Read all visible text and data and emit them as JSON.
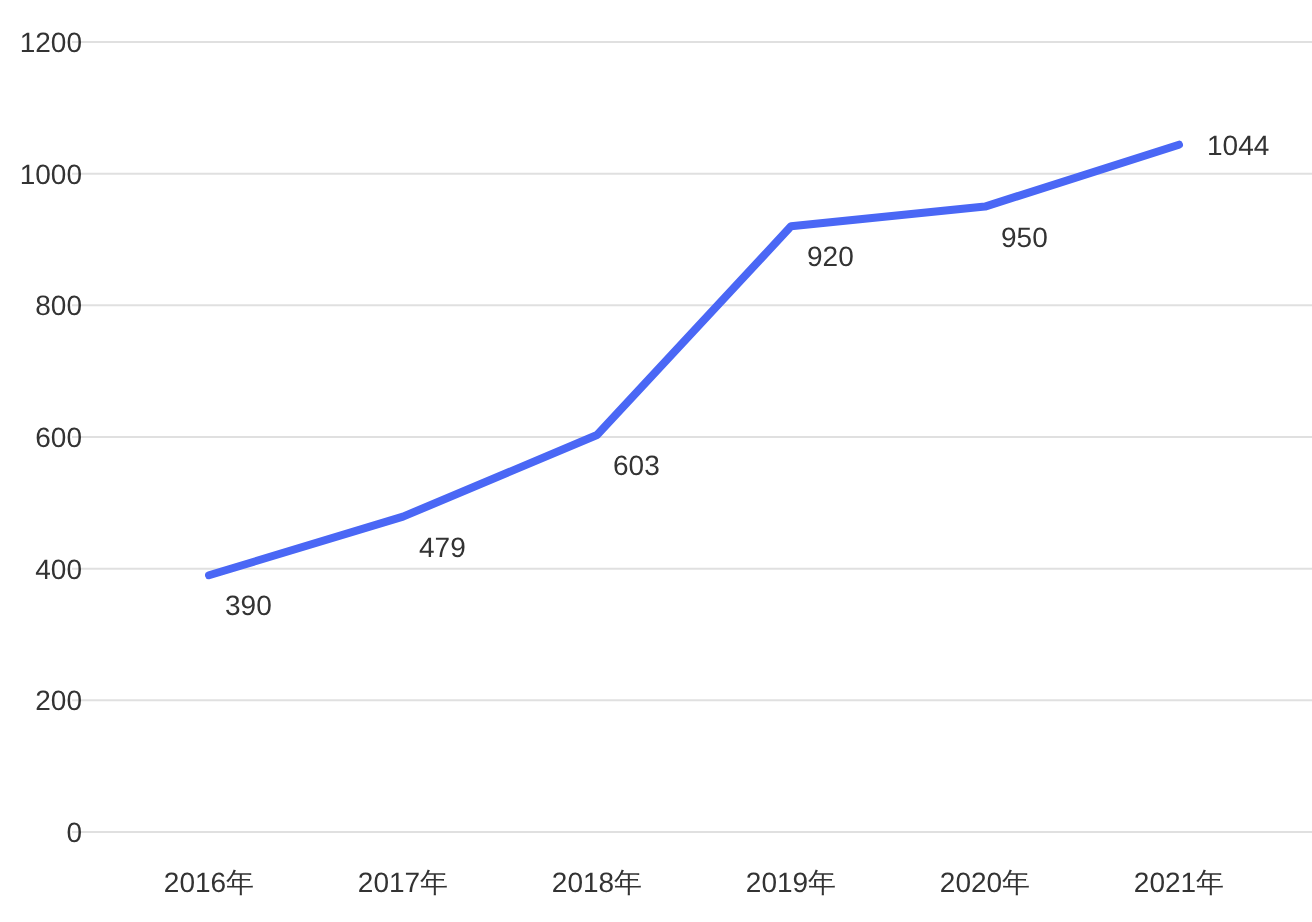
{
  "chart_data": {
    "type": "line",
    "categories": [
      "2016年",
      "2017年",
      "2018年",
      "2019年",
      "2020年",
      "2021年"
    ],
    "series": [
      {
        "color": "#4a67f5",
        "values": [
          390,
          479,
          603,
          920,
          950,
          1044
        ]
      }
    ],
    "ylim": [
      0,
      1200
    ],
    "yticks": [
      0,
      200,
      400,
      600,
      800,
      1000,
      1200
    ],
    "grid": "y",
    "data_labels": true,
    "marker": "none",
    "line_style": "solid"
  }
}
